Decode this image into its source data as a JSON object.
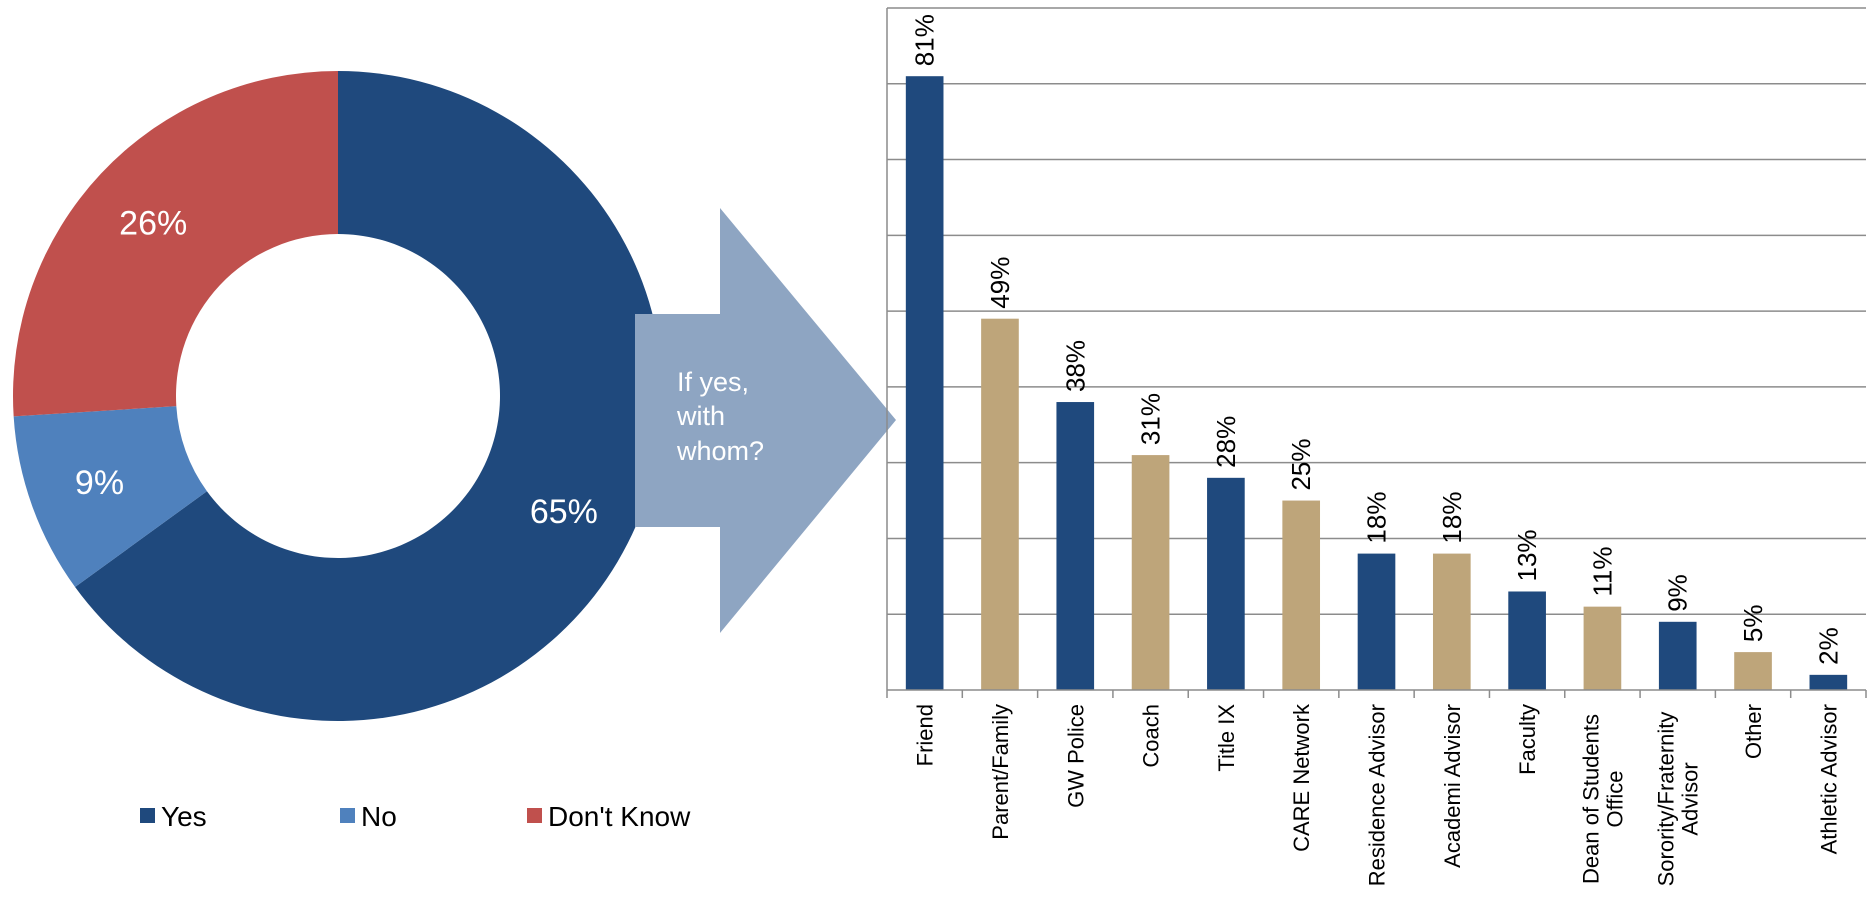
{
  "chart_data": [
    {
      "type": "pie",
      "variant": "donut",
      "categories": [
        "Yes",
        "No",
        "Don't Know"
      ],
      "values": [
        65,
        9,
        26
      ],
      "value_labels": [
        "65%",
        "9%",
        "26%"
      ],
      "colors": [
        "#1f497d",
        "#4f81bd",
        "#c0504d"
      ],
      "legend": {
        "placement": "bottom",
        "entries": [
          "Yes",
          "No",
          "Don't Know"
        ]
      }
    },
    {
      "type": "bar",
      "categories": [
        "Friend",
        "Parent/Family",
        "GW Police",
        "Coach",
        "Title IX",
        "CARE Network",
        "Residence Advisor",
        "Academi Advisor",
        "Faculty",
        "Dean of Students Office",
        "Sorority/Fraternity Advisor",
        "Other",
        "Athletic Advisor"
      ],
      "values": [
        81,
        49,
        38,
        31,
        28,
        25,
        18,
        18,
        13,
        11,
        9,
        5,
        2
      ],
      "value_labels": [
        "81%",
        "49%",
        "38%",
        "31%",
        "28%",
        "25%",
        "18%",
        "18%",
        "13%",
        "11%",
        "9%",
        "5%",
        "2%"
      ],
      "colors": [
        "#1f497d",
        "#bea57a"
      ],
      "ylim": [
        0,
        90
      ],
      "grid": true
    }
  ],
  "arrow": {
    "text_lines": [
      "If yes,",
      "with",
      "whom?"
    ],
    "color": "#8ea5c2"
  }
}
